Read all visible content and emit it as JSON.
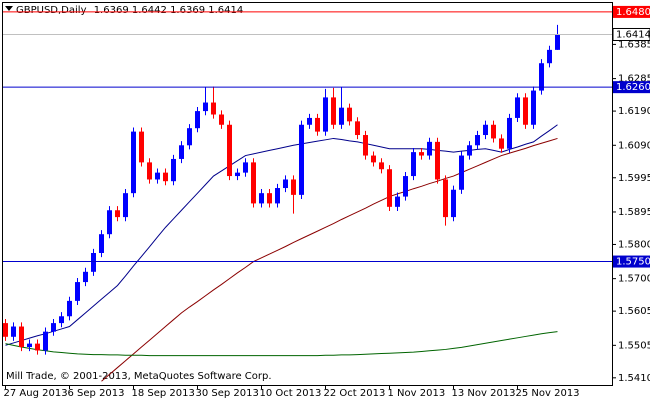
{
  "chart_data": {
    "type": "candlestick",
    "title": "GBPUSD,Daily",
    "footer": "Mill Trade, © 2001-2013, MetaQuotes Software Corp.",
    "categories": [
      "27 Aug 2013",
      null,
      null,
      null,
      null,
      null,
      null,
      null,
      "6 Sep 2013",
      null,
      null,
      null,
      null,
      null,
      null,
      null,
      "18 Sep 2013",
      null,
      null,
      null,
      null,
      null,
      null,
      null,
      "30 Sep 2013",
      null,
      null,
      null,
      null,
      null,
      null,
      null,
      "10 Oct 2013",
      null,
      null,
      null,
      null,
      null,
      null,
      null,
      "22 Oct 2013",
      null,
      null,
      null,
      null,
      null,
      null,
      null,
      "1 Nov 2013",
      null,
      null,
      null,
      null,
      null,
      null,
      null,
      "13 Nov 2013",
      null,
      null,
      null,
      null,
      null,
      null,
      null,
      "25 Nov 2013",
      null,
      null,
      null,
      null,
      null
    ],
    "open": [
      1.557,
      1.553,
      1.556,
      1.55,
      1.551,
      1.549,
      1.5545,
      1.557,
      1.559,
      1.5635,
      1.569,
      1.572,
      1.5775,
      1.583,
      1.59,
      1.588,
      1.595,
      1.613,
      1.604,
      1.599,
      1.601,
      1.5985,
      1.605,
      1.609,
      1.614,
      1.619,
      1.6215,
      1.618,
      1.615,
      1.6,
      1.601,
      1.604,
      1.592,
      1.595,
      1.592,
      1.5965,
      1.599,
      1.5945,
      1.615,
      1.617,
      1.613,
      1.623,
      1.615,
      1.62,
      1.616,
      1.612,
      1.606,
      1.604,
      1.602,
      1.591,
      1.594,
      1.6,
      1.607,
      1.606,
      1.61,
      1.599,
      1.588,
      1.596,
      1.606,
      1.609,
      1.612,
      1.615,
      1.611,
      1.608,
      1.617,
      1.623,
      1.615,
      1.625,
      1.633,
      1.6369
    ],
    "high": [
      1.5582,
      1.5572,
      1.5572,
      1.5522,
      1.5522,
      1.5557,
      1.5582,
      1.5602,
      1.5647,
      1.5702,
      1.5732,
      1.5787,
      1.5842,
      1.5912,
      1.5912,
      1.5962,
      1.6142,
      1.6142,
      1.6052,
      1.6022,
      1.6022,
      1.6062,
      1.6102,
      1.6152,
      1.6202,
      1.626,
      1.6262,
      1.6192,
      1.6162,
      1.6022,
      1.6052,
      1.6052,
      1.5962,
      1.5962,
      1.5977,
      1.6002,
      1.6002,
      1.6162,
      1.6182,
      1.6182,
      1.6255,
      1.6258,
      1.626,
      1.6212,
      1.6172,
      1.6132,
      1.6072,
      1.6052,
      1.6032,
      1.5952,
      1.6012,
      1.6082,
      1.6082,
      1.6112,
      1.6112,
      1.6002,
      1.5972,
      1.6072,
      1.6102,
      1.6132,
      1.6162,
      1.6162,
      1.6122,
      1.6182,
      1.6242,
      1.6242,
      1.6262,
      1.6342,
      1.6381,
      1.6442
    ],
    "low": [
      1.5518,
      1.5518,
      1.5488,
      1.5488,
      1.5478,
      1.5478,
      1.5533,
      1.5558,
      1.5578,
      1.5623,
      1.5678,
      1.5708,
      1.5763,
      1.5818,
      1.5868,
      1.5868,
      1.5938,
      1.6028,
      1.5978,
      1.5978,
      1.5973,
      1.5973,
      1.6038,
      1.6078,
      1.6128,
      1.6178,
      1.6168,
      1.6138,
      1.5988,
      1.5988,
      1.5998,
      1.5908,
      1.5908,
      1.5908,
      1.5908,
      1.5953,
      1.589,
      1.5933,
      1.6138,
      1.6118,
      1.6118,
      1.6138,
      1.6138,
      1.6148,
      1.6108,
      1.6048,
      1.6028,
      1.6008,
      1.5898,
      1.5898,
      1.5928,
      1.5988,
      1.6048,
      1.6048,
      1.5978,
      1.5855,
      1.5868,
      1.5948,
      1.6048,
      1.6078,
      1.6108,
      1.6098,
      1.6068,
      1.6068,
      1.6158,
      1.6138,
      1.6138,
      1.6238,
      1.6318,
      1.6369
    ],
    "close": [
      1.553,
      1.556,
      1.55,
      1.551,
      1.549,
      1.5545,
      1.557,
      1.559,
      1.5635,
      1.569,
      1.572,
      1.5775,
      1.583,
      1.59,
      1.588,
      1.595,
      1.613,
      1.604,
      1.599,
      1.601,
      1.5985,
      1.605,
      1.609,
      1.614,
      1.619,
      1.6215,
      1.618,
      1.615,
      1.6,
      1.601,
      1.604,
      1.592,
      1.595,
      1.592,
      1.5965,
      1.599,
      1.5945,
      1.615,
      1.617,
      1.613,
      1.623,
      1.615,
      1.62,
      1.616,
      1.612,
      1.606,
      1.604,
      1.602,
      1.591,
      1.594,
      1.6,
      1.607,
      1.606,
      1.61,
      1.599,
      1.588,
      1.596,
      1.606,
      1.609,
      1.612,
      1.615,
      1.611,
      1.608,
      1.617,
      1.623,
      1.615,
      1.625,
      1.633,
      1.6369,
      1.6414
    ],
    "up_color": "#0000ff",
    "down_color": "#ff0000",
    "lines": [
      {
        "color": "#00008b",
        "values": [
          1.5505,
          1.5512,
          1.5519,
          1.5526,
          1.5533,
          1.5539,
          1.5546,
          1.5553,
          1.556,
          1.558,
          1.56,
          1.562,
          1.564,
          1.566,
          1.568,
          1.5708,
          1.5737,
          1.5765,
          1.5793,
          1.5822,
          1.585,
          1.5875,
          1.59,
          1.5925,
          1.595,
          1.5975,
          1.6,
          1.6015,
          1.603,
          1.6045,
          1.606,
          1.6065,
          1.607,
          1.6075,
          1.608,
          1.6085,
          1.609,
          1.6094,
          1.6098,
          1.6102,
          1.6106,
          1.611,
          1.6107,
          1.6103,
          1.61,
          1.6095,
          1.609,
          1.6085,
          1.608,
          1.608,
          1.608,
          1.608,
          1.608,
          1.6078,
          1.6075,
          1.6073,
          1.607,
          1.6073,
          1.6075,
          1.6078,
          1.608,
          1.6075,
          1.607,
          1.6078,
          1.6085,
          1.6093,
          1.61,
          1.6117,
          1.6133,
          1.615
        ]
      },
      {
        "color": "#8b0000",
        "values": [
          null,
          null,
          null,
          null,
          null,
          null,
          null,
          null,
          null,
          null,
          null,
          null,
          1.54,
          1.542,
          1.544,
          1.546,
          1.548,
          1.55,
          1.552,
          1.554,
          1.556,
          1.558,
          1.56,
          1.5617,
          1.5633,
          1.565,
          1.5667,
          1.5683,
          1.57,
          1.5717,
          1.5733,
          1.575,
          1.5761,
          1.5772,
          1.5783,
          1.5794,
          1.5806,
          1.5817,
          1.5828,
          1.5839,
          1.585,
          1.5861,
          1.5873,
          1.5884,
          1.5895,
          1.5906,
          1.5918,
          1.5929,
          1.594,
          1.5948,
          1.5955,
          1.5963,
          1.597,
          1.5978,
          1.5985,
          1.5993,
          1.6,
          1.601,
          1.602,
          1.603,
          1.604,
          1.605,
          1.606,
          1.6067,
          1.6074,
          1.6081,
          1.6089,
          1.6096,
          1.6103,
          1.611
        ]
      },
      {
        "color": "#006400",
        "values": [
          1.551,
          1.5505,
          1.55,
          1.5496,
          1.5492,
          1.5489,
          1.5486,
          1.5484,
          1.5482,
          1.548,
          1.5479,
          1.5478,
          1.5478,
          1.5477,
          1.5477,
          1.5476,
          1.5476,
          1.5476,
          1.5475,
          1.5475,
          1.5475,
          1.5475,
          1.5475,
          1.5475,
          1.5475,
          1.5475,
          1.5475,
          1.5475,
          1.5475,
          1.5475,
          1.5475,
          1.5475,
          1.5475,
          1.5475,
          1.5475,
          1.5475,
          1.5475,
          1.5475,
          1.5475,
          1.5475,
          1.5476,
          1.5476,
          1.5477,
          1.5477,
          1.5478,
          1.5479,
          1.548,
          1.5481,
          1.5482,
          1.5483,
          1.5484,
          1.5485,
          1.5487,
          1.5489,
          1.5491,
          1.5493,
          1.5496,
          1.5499,
          1.5503,
          1.5507,
          1.5511,
          1.5515,
          1.5519,
          1.5523,
          1.5527,
          1.5531,
          1.5535,
          1.5539,
          1.5542,
          1.5545
        ]
      }
    ],
    "levels": [
      {
        "value": 1.648,
        "label": "1.6480",
        "color": "#ff0000"
      },
      {
        "value": 1.626,
        "label": "1.6260",
        "color": "#0000cd"
      },
      {
        "value": 1.575,
        "label": "1.5750",
        "color": "#0000cd"
      }
    ],
    "ylim": [
      1.5389,
      1.6509
    ],
    "yticks": [
      1.6385,
      1.6285,
      {
        "value": 1.619,
        "label": "1.6190"
      },
      {
        "value": 1.609,
        "label": "1.6090"
      },
      1.5995,
      1.5895,
      {
        "value": 1.58,
        "label": "1.5800"
      },
      {
        "value": 1.57,
        "label": "1.5700"
      },
      1.5605,
      1.5505,
      {
        "value": 1.541,
        "label": "1.5410"
      }
    ]
  }
}
